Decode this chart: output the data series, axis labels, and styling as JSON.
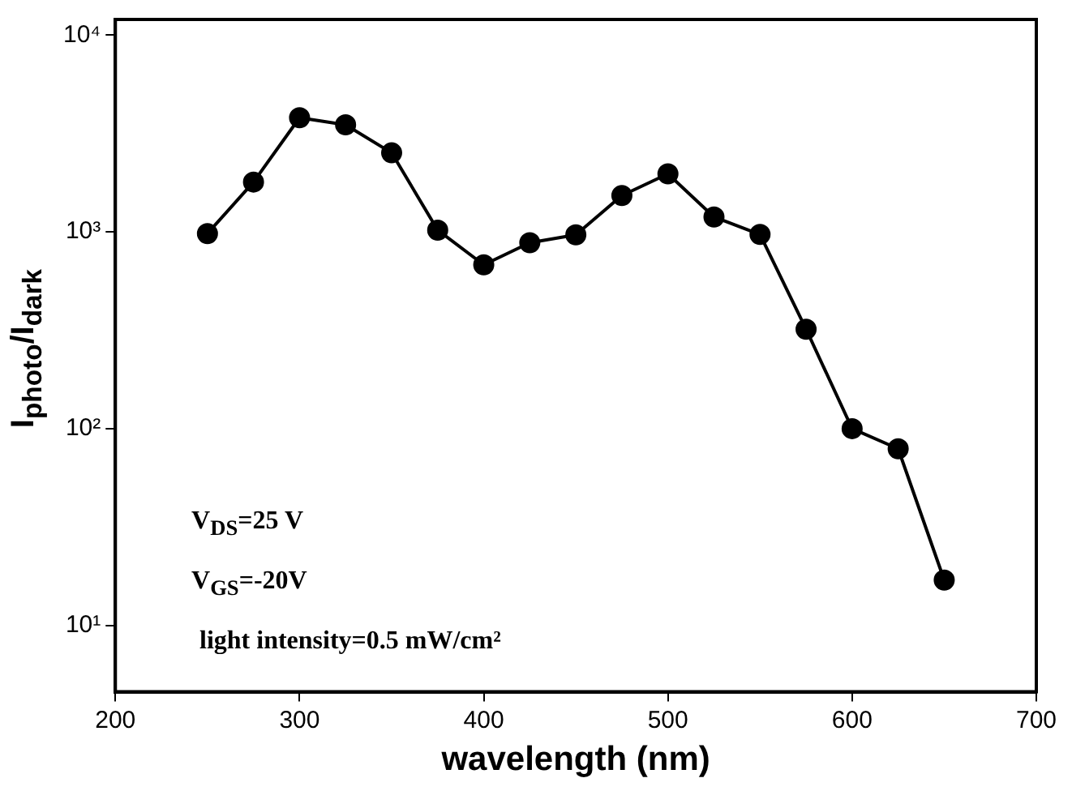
{
  "chart_data": {
    "type": "line",
    "xlabel": "wavelength (nm)",
    "ylabel": "I$_{photo}$/I$_{dark}$",
    "x": [
      250,
      275,
      300,
      325,
      350,
      375,
      400,
      425,
      450,
      475,
      500,
      525,
      550,
      575,
      600,
      625,
      650
    ],
    "series": [
      {
        "color": "#000000",
        "values": [
          980,
          1790,
          3800,
          3500,
          2520,
          1020,
          680,
          880,
          965,
          1530,
          1970,
          1190,
          970,
          320,
          100,
          79,
          17
        ]
      }
    ],
    "log": "y",
    "xlim": [
      200,
      700
    ],
    "xticks": [
      200,
      300,
      400,
      500,
      600,
      700
    ],
    "ylim": [
      4.6,
      12000
    ],
    "yticks": [
      {
        "value": 10,
        "label": "10¹"
      },
      {
        "value": 100,
        "label": "10²"
      },
      {
        "value": 1000,
        "label": "10³"
      },
      {
        "value": 10000,
        "label": "10⁴"
      }
    ],
    "grid": false,
    "legend": false,
    "marker": "circle",
    "line_style": "solid",
    "annotations": [
      "V$_{DS}$=25 V",
      "V$_{GS}$=-20V",
      "light intensity=0.5 mW/cm²"
    ]
  }
}
